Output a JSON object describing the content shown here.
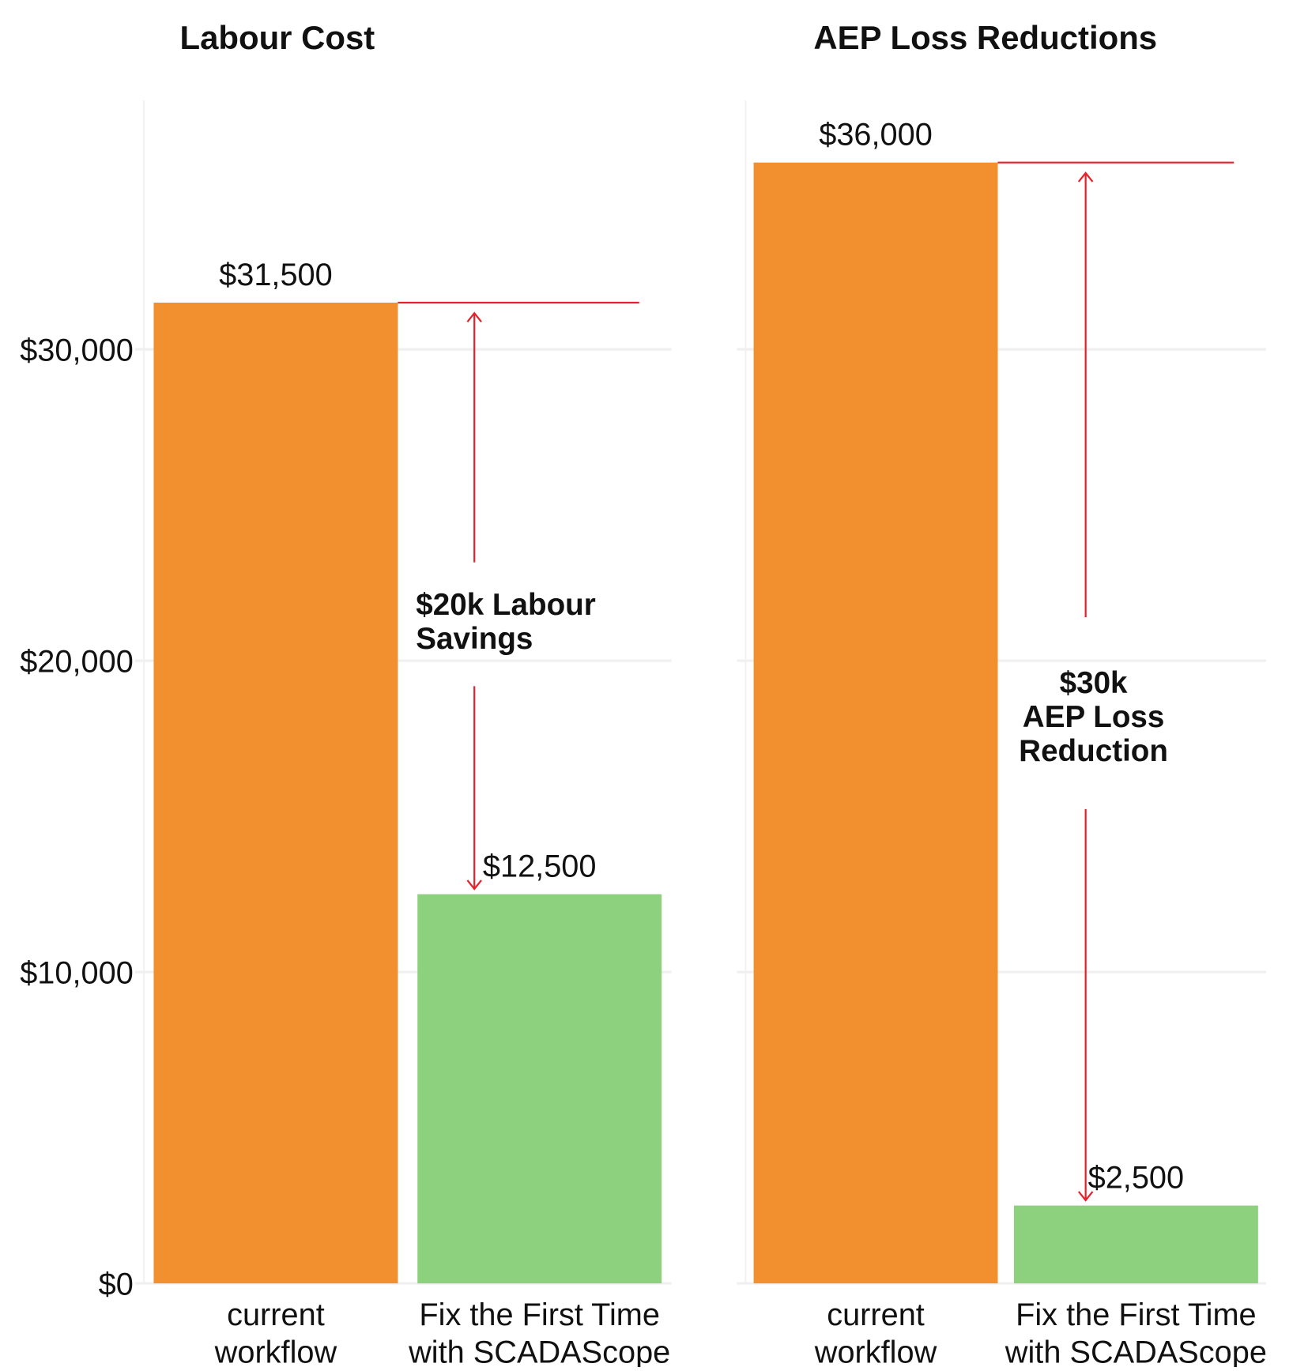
{
  "chart_data": [
    {
      "type": "bar",
      "title": "Labour Cost",
      "categories": [
        "current\nworkflow",
        "Fix the First Time\nwith SCADAScope"
      ],
      "values": [
        31500,
        12500
      ],
      "value_labels": [
        "$31,500",
        "$12,500"
      ],
      "colors": [
        "#f28f2f",
        "#8dd17e"
      ],
      "ylim": [
        0,
        38000
      ],
      "yticks": [
        {
          "value": 0,
          "label": "$0"
        },
        {
          "value": 10000,
          "label": "$10,000"
        },
        {
          "value": 20000,
          "label": "$20,000"
        },
        {
          "value": 30000,
          "label": "$30,000"
        }
      ],
      "grid": true,
      "annotation": "$20k Labour\nSavings"
    },
    {
      "type": "bar",
      "title": "AEP Loss Reductions",
      "categories": [
        "current\nworkflow",
        "Fix the First Time\nwith SCADAScope"
      ],
      "values": [
        36000,
        2500
      ],
      "value_labels": [
        "$36,000",
        "$2,500"
      ],
      "colors": [
        "#f28f2f",
        "#8dd17e"
      ],
      "ylim": [
        0,
        38000
      ],
      "grid": true,
      "annotation": "$30k\nAEP Loss\nReduction"
    }
  ]
}
